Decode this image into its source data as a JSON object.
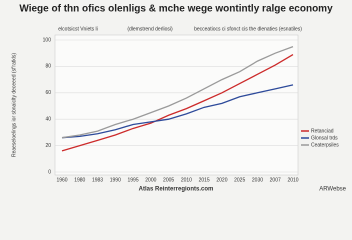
{
  "chart_data": {
    "type": "line",
    "title": "Wiege of thn ofics olenligs & mche wege wontintly ralge economy",
    "subtitles": [
      "elcotsicst Vniets li",
      "(dlemstrend derliosi)",
      "becceatiocs ci sfonct cis the dlenaties (esnatiles)"
    ],
    "y_label": "Reaeseloelings ior sbnaiclty deceeed (sf'ratkls)",
    "source": "Atlas Reinterregionts.com",
    "credit": "ARWebse",
    "categories": [
      "1960",
      "1980",
      "1983",
      "1990",
      "1995",
      "2000",
      "2005",
      "2010",
      "2015",
      "2020",
      "2025",
      "2030",
      "2007",
      "2010"
    ],
    "series": [
      {
        "name": "Retanciad",
        "color": "#cc2a2a",
        "values": [
          16,
          20,
          24,
          28,
          33,
          37,
          43,
          48,
          54,
          60,
          67,
          74,
          81,
          89
        ]
      },
      {
        "name": "Glonsal trds",
        "color": "#2d4a9a",
        "values": [
          26,
          27,
          29,
          32,
          36,
          38,
          40,
          44,
          49,
          52,
          57,
          60,
          63,
          66
        ]
      },
      {
        "name": "Ceaterpsiles",
        "color": "#9a9a9a",
        "values": [
          26,
          28,
          31,
          36,
          40,
          45,
          50,
          56,
          63,
          70,
          76,
          84,
          90,
          95
        ]
      }
    ],
    "ylim": [
      0,
      100
    ],
    "yticks": [
      0,
      20,
      40,
      60,
      80,
      100
    ],
    "grid": true
  }
}
